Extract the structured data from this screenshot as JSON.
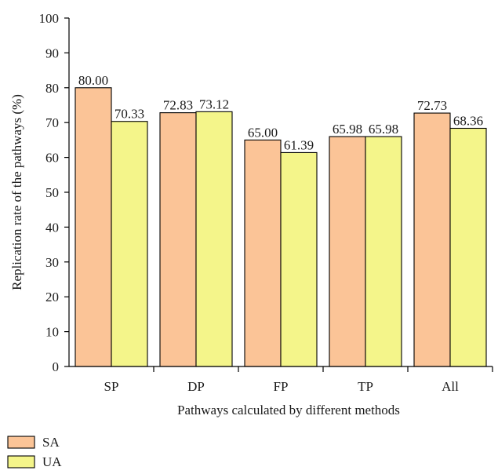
{
  "chart_data": {
    "type": "bar",
    "categories": [
      "SP",
      "DP",
      "FP",
      "TP",
      "All"
    ],
    "series": [
      {
        "name": "SA",
        "values": [
          80.0,
          72.83,
          65.0,
          65.98,
          72.73
        ],
        "labels": [
          "80.00",
          "72.83",
          "65.00",
          "65.98",
          "72.73"
        ],
        "color": "#fbc497"
      },
      {
        "name": "UA",
        "values": [
          70.33,
          73.12,
          61.39,
          65.98,
          68.36
        ],
        "labels": [
          "70.33",
          "73.12",
          "61.39",
          "65.98",
          "68.36"
        ],
        "color": "#f4f58a"
      }
    ],
    "xlabel": "Pathways calculated by different methods",
    "ylabel": "Replication rate of the pathways (%)",
    "ylim": [
      0,
      100
    ],
    "yticks": [
      0,
      10,
      20,
      30,
      40,
      50,
      60,
      70,
      80,
      90,
      100
    ],
    "grid": false,
    "legend_position": "bottom-left"
  }
}
